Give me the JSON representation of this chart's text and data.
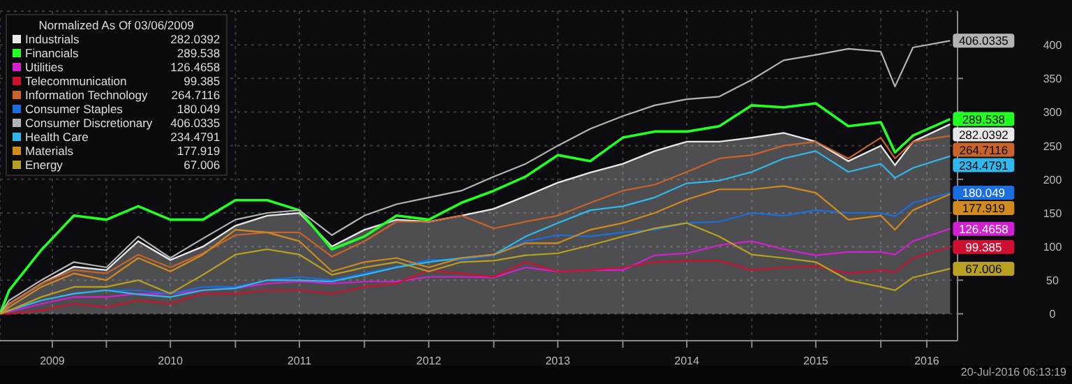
{
  "chart_data": {
    "type": "line",
    "legend_title": "Normalized As Of 03/06/2009",
    "legend": "top left",
    "grid": true,
    "x": [
      "2009-03-06",
      "2009-04-01",
      "2009-07-01",
      "2009-10-01",
      "2010-01-01",
      "2010-04-01",
      "2010-07-01",
      "2010-10-01",
      "2011-01-01",
      "2011-04-01",
      "2011-07-01",
      "2011-10-01",
      "2012-01-01",
      "2012-04-01",
      "2012-07-01",
      "2012-10-01",
      "2013-01-01",
      "2013-04-01",
      "2013-07-01",
      "2013-10-01",
      "2014-01-01",
      "2014-04-01",
      "2014-07-01",
      "2014-10-01",
      "2015-01-01",
      "2015-04-01",
      "2015-07-01",
      "2015-10-01",
      "2016-01-01",
      "2016-02-10",
      "2016-04-01",
      "2016-07-15"
    ],
    "xlim": [
      "2009-03-06",
      "2016-08-05"
    ],
    "xticks": [
      {
        "value": "2009-08-01",
        "label": "2009"
      },
      {
        "value": "2010-01-01",
        "label": null
      },
      {
        "value": "2010-07-01",
        "label": "2010"
      },
      {
        "value": "2011-01-01",
        "label": null
      },
      {
        "value": "2011-07-01",
        "label": "2011"
      },
      {
        "value": "2012-01-01",
        "label": null
      },
      {
        "value": "2012-07-01",
        "label": "2012"
      },
      {
        "value": "2013-01-01",
        "label": null
      },
      {
        "value": "2013-07-01",
        "label": "2013"
      },
      {
        "value": "2014-01-01",
        "label": null
      },
      {
        "value": "2014-07-01",
        "label": "2014"
      },
      {
        "value": "2015-01-01",
        "label": null
      },
      {
        "value": "2015-07-01",
        "label": "2015"
      },
      {
        "value": "2016-01-01",
        "label": null
      },
      {
        "value": "2016-05-10",
        "label": "2016"
      }
    ],
    "ylim": [
      -40,
      450
    ],
    "yticks": [
      0,
      50,
      100,
      150,
      200,
      250,
      300,
      350,
      400
    ],
    "series": [
      {
        "name": "Industrials",
        "type": "area",
        "color": "#e8e8e8",
        "values": [
          0,
          15,
          45,
          70,
          65,
          108,
          80,
          100,
          131,
          146,
          150,
          100,
          125,
          140,
          137,
          146,
          156,
          175,
          195,
          210,
          223,
          242,
          256,
          256,
          262,
          269,
          256,
          227,
          250,
          221,
          256,
          282.0392
        ],
        "value_labels": [
          null,
          null,
          null,
          null,
          null,
          null,
          null,
          null,
          null,
          null,
          null,
          null,
          null,
          null,
          null,
          null,
          null,
          null,
          null,
          null,
          null,
          null,
          null,
          null,
          null,
          null,
          null,
          null,
          null,
          null,
          null,
          "282.0392"
        ]
      },
      {
        "name": "Financials",
        "color": "#22ff22",
        "values": [
          0,
          35,
          95,
          146,
          140,
          160,
          140,
          140,
          169,
          169,
          154,
          96,
          115,
          146,
          140,
          165,
          183,
          204,
          236,
          227,
          262,
          271,
          271,
          279,
          310,
          307,
          313,
          279,
          285,
          240,
          265,
          289.538
        ],
        "value_labels": [
          null,
          null,
          null,
          null,
          null,
          null,
          null,
          null,
          null,
          null,
          null,
          null,
          null,
          null,
          null,
          null,
          null,
          null,
          null,
          null,
          null,
          null,
          null,
          null,
          null,
          null,
          null,
          null,
          null,
          null,
          null,
          "289.538"
        ]
      },
      {
        "name": "Utilities",
        "color": "#d020d0",
        "values": [
          0,
          3,
          15,
          25,
          25,
          30,
          30,
          35,
          38,
          45,
          48,
          45,
          48,
          48,
          55,
          55,
          54,
          69,
          63,
          65,
          65,
          87,
          90,
          102,
          108,
          96,
          87,
          92,
          92,
          88,
          108,
          126.4658
        ],
        "value_labels": [
          null,
          null,
          null,
          null,
          null,
          null,
          null,
          null,
          null,
          null,
          null,
          null,
          null,
          null,
          null,
          null,
          null,
          null,
          null,
          null,
          null,
          null,
          null,
          null,
          null,
          null,
          null,
          null,
          null,
          null,
          null,
          "126.4658"
        ]
      },
      {
        "name": "Telecommunication",
        "color": "#d01030",
        "values": [
          0,
          0,
          5,
          15,
          10,
          20,
          15,
          30,
          30,
          35,
          35,
          30,
          40,
          45,
          65,
          60,
          55,
          77,
          63,
          65,
          69,
          77,
          79,
          79,
          65,
          69,
          71,
          60,
          65,
          62,
          83,
          99.385
        ],
        "value_labels": [
          null,
          null,
          null,
          null,
          null,
          null,
          null,
          null,
          null,
          null,
          null,
          null,
          null,
          null,
          null,
          null,
          null,
          null,
          null,
          null,
          null,
          null,
          null,
          null,
          null,
          null,
          null,
          null,
          null,
          null,
          null,
          "99.385"
        ]
      },
      {
        "name": "Information Technology",
        "color": "#c8642a",
        "values": [
          0,
          15,
          45,
          65,
          60,
          88,
          69,
          90,
          117,
          121,
          121,
          85,
          108,
          137,
          137,
          146,
          127,
          137,
          146,
          165,
          183,
          192,
          211,
          231,
          236,
          250,
          256,
          231,
          262,
          231,
          256,
          264.7116
        ],
        "value_labels": [
          null,
          null,
          null,
          null,
          null,
          null,
          null,
          null,
          null,
          null,
          null,
          null,
          null,
          null,
          null,
          null,
          null,
          null,
          null,
          null,
          null,
          null,
          null,
          null,
          null,
          null,
          null,
          null,
          null,
          null,
          null,
          "264.7116"
        ]
      },
      {
        "name": "Consumer Staples",
        "color": "#1a6ee0",
        "values": [
          0,
          5,
          20,
          30,
          35,
          35,
          30,
          40,
          40,
          50,
          55,
          50,
          60,
          70,
          80,
          80,
          87,
          108,
          117,
          115,
          121,
          125,
          135,
          137,
          150,
          146,
          154,
          150,
          150,
          145,
          165,
          180.049
        ],
        "value_labels": [
          null,
          null,
          null,
          null,
          null,
          null,
          null,
          null,
          null,
          null,
          null,
          null,
          null,
          null,
          null,
          null,
          null,
          null,
          null,
          null,
          null,
          null,
          null,
          null,
          null,
          null,
          null,
          null,
          null,
          null,
          null,
          "180.049"
        ]
      },
      {
        "name": "Consumer Discretionary",
        "color": "#b4b4b4",
        "values": [
          0,
          20,
          50,
          77,
          69,
          115,
          83,
          112,
          140,
          150,
          154,
          117,
          146,
          163,
          173,
          183,
          204,
          223,
          250,
          275,
          294,
          310,
          319,
          323,
          348,
          377,
          385,
          394,
          390,
          338,
          396,
          406.0335
        ],
        "value_labels": [
          null,
          null,
          null,
          null,
          null,
          null,
          null,
          null,
          null,
          null,
          null,
          null,
          null,
          null,
          null,
          null,
          null,
          null,
          null,
          null,
          null,
          null,
          null,
          null,
          null,
          null,
          null,
          null,
          null,
          null,
          null,
          "406.0335"
        ]
      },
      {
        "name": "Health Care",
        "color": "#30b8ec",
        "values": [
          0,
          5,
          20,
          30,
          35,
          29,
          25,
          35,
          38,
          50,
          50,
          48,
          58,
          69,
          77,
          83,
          88,
          115,
          135,
          154,
          160,
          173,
          194,
          198,
          211,
          231,
          242,
          211,
          223,
          202,
          217,
          234.4791
        ],
        "value_labels": [
          null,
          null,
          null,
          null,
          null,
          null,
          null,
          null,
          null,
          null,
          null,
          null,
          null,
          null,
          null,
          null,
          null,
          null,
          null,
          null,
          null,
          null,
          null,
          null,
          null,
          null,
          null,
          null,
          null,
          null,
          null,
          "234.4791"
        ]
      },
      {
        "name": "Materials",
        "color": "#d08a20",
        "values": [
          0,
          10,
          40,
          60,
          50,
          83,
          63,
          88,
          125,
          121,
          108,
          63,
          77,
          83,
          69,
          83,
          88,
          105,
          105,
          125,
          135,
          150,
          170,
          185,
          185,
          190,
          180,
          140,
          146,
          125,
          154,
          177.919
        ],
        "value_labels": [
          null,
          null,
          null,
          null,
          null,
          null,
          null,
          null,
          null,
          null,
          null,
          null,
          null,
          null,
          null,
          null,
          null,
          null,
          null,
          null,
          null,
          null,
          null,
          null,
          null,
          null,
          null,
          null,
          null,
          null,
          null,
          "177.919"
        ]
      },
      {
        "name": "Energy",
        "color": "#b8a020",
        "values": [
          0,
          5,
          25,
          40,
          40,
          50,
          30,
          58,
          88,
          96,
          88,
          58,
          69,
          77,
          63,
          77,
          79,
          87,
          90,
          102,
          115,
          127,
          135,
          115,
          88,
          83,
          77,
          50,
          40,
          35,
          54,
          67.006
        ],
        "value_labels": [
          null,
          null,
          null,
          null,
          null,
          null,
          null,
          null,
          null,
          null,
          null,
          null,
          null,
          null,
          null,
          null,
          null,
          null,
          null,
          null,
          null,
          null,
          null,
          null,
          null,
          null,
          null,
          null,
          null,
          null,
          null,
          "67.006"
        ]
      }
    ],
    "annotations": [
      "20-Jul-2016 06:13:19"
    ]
  }
}
